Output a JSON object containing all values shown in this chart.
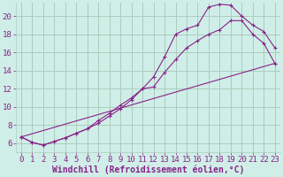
{
  "background_color": "#d0eee8",
  "grid_color": "#aaccbb",
  "line_color": "#882288",
  "marker_color": "#882288",
  "xlabel": "Windchill (Refroidissement éolien,°C)",
  "xlim": [
    -0.5,
    23.5
  ],
  "ylim": [
    5.0,
    21.5
  ],
  "yticks": [
    6,
    8,
    10,
    12,
    14,
    16,
    18,
    20
  ],
  "xticks": [
    0,
    1,
    2,
    3,
    4,
    5,
    6,
    7,
    8,
    9,
    10,
    11,
    12,
    13,
    14,
    15,
    16,
    17,
    18,
    19,
    20,
    21,
    22,
    23
  ],
  "line1_x": [
    0,
    1,
    2,
    3,
    4,
    5,
    6,
    7,
    8,
    9,
    10,
    11,
    12,
    13,
    14,
    15,
    16,
    17,
    18,
    19,
    20,
    21,
    22,
    23
  ],
  "line1_y": [
    6.7,
    6.1,
    5.8,
    6.2,
    6.6,
    7.1,
    7.6,
    8.2,
    9.0,
    9.8,
    10.8,
    12.0,
    13.3,
    15.5,
    18.0,
    18.6,
    19.0,
    21.0,
    21.3,
    21.2,
    20.0,
    19.0,
    18.3,
    16.5
  ],
  "line2_x": [
    0,
    1,
    2,
    3,
    4,
    5,
    6,
    7,
    8,
    9,
    10,
    11,
    12,
    13,
    14,
    15,
    16,
    17,
    18,
    19,
    20,
    21,
    22,
    23
  ],
  "line2_y": [
    6.7,
    6.1,
    5.8,
    6.2,
    6.6,
    7.1,
    7.6,
    8.5,
    9.3,
    10.2,
    11.0,
    12.0,
    12.2,
    13.8,
    15.2,
    16.5,
    17.3,
    18.0,
    18.5,
    19.5,
    19.5,
    18.0,
    17.0,
    14.8
  ],
  "line3_x": [
    0,
    23
  ],
  "line3_y": [
    6.7,
    14.8
  ],
  "font_size": 6.5,
  "xlabel_font_size": 7.0
}
